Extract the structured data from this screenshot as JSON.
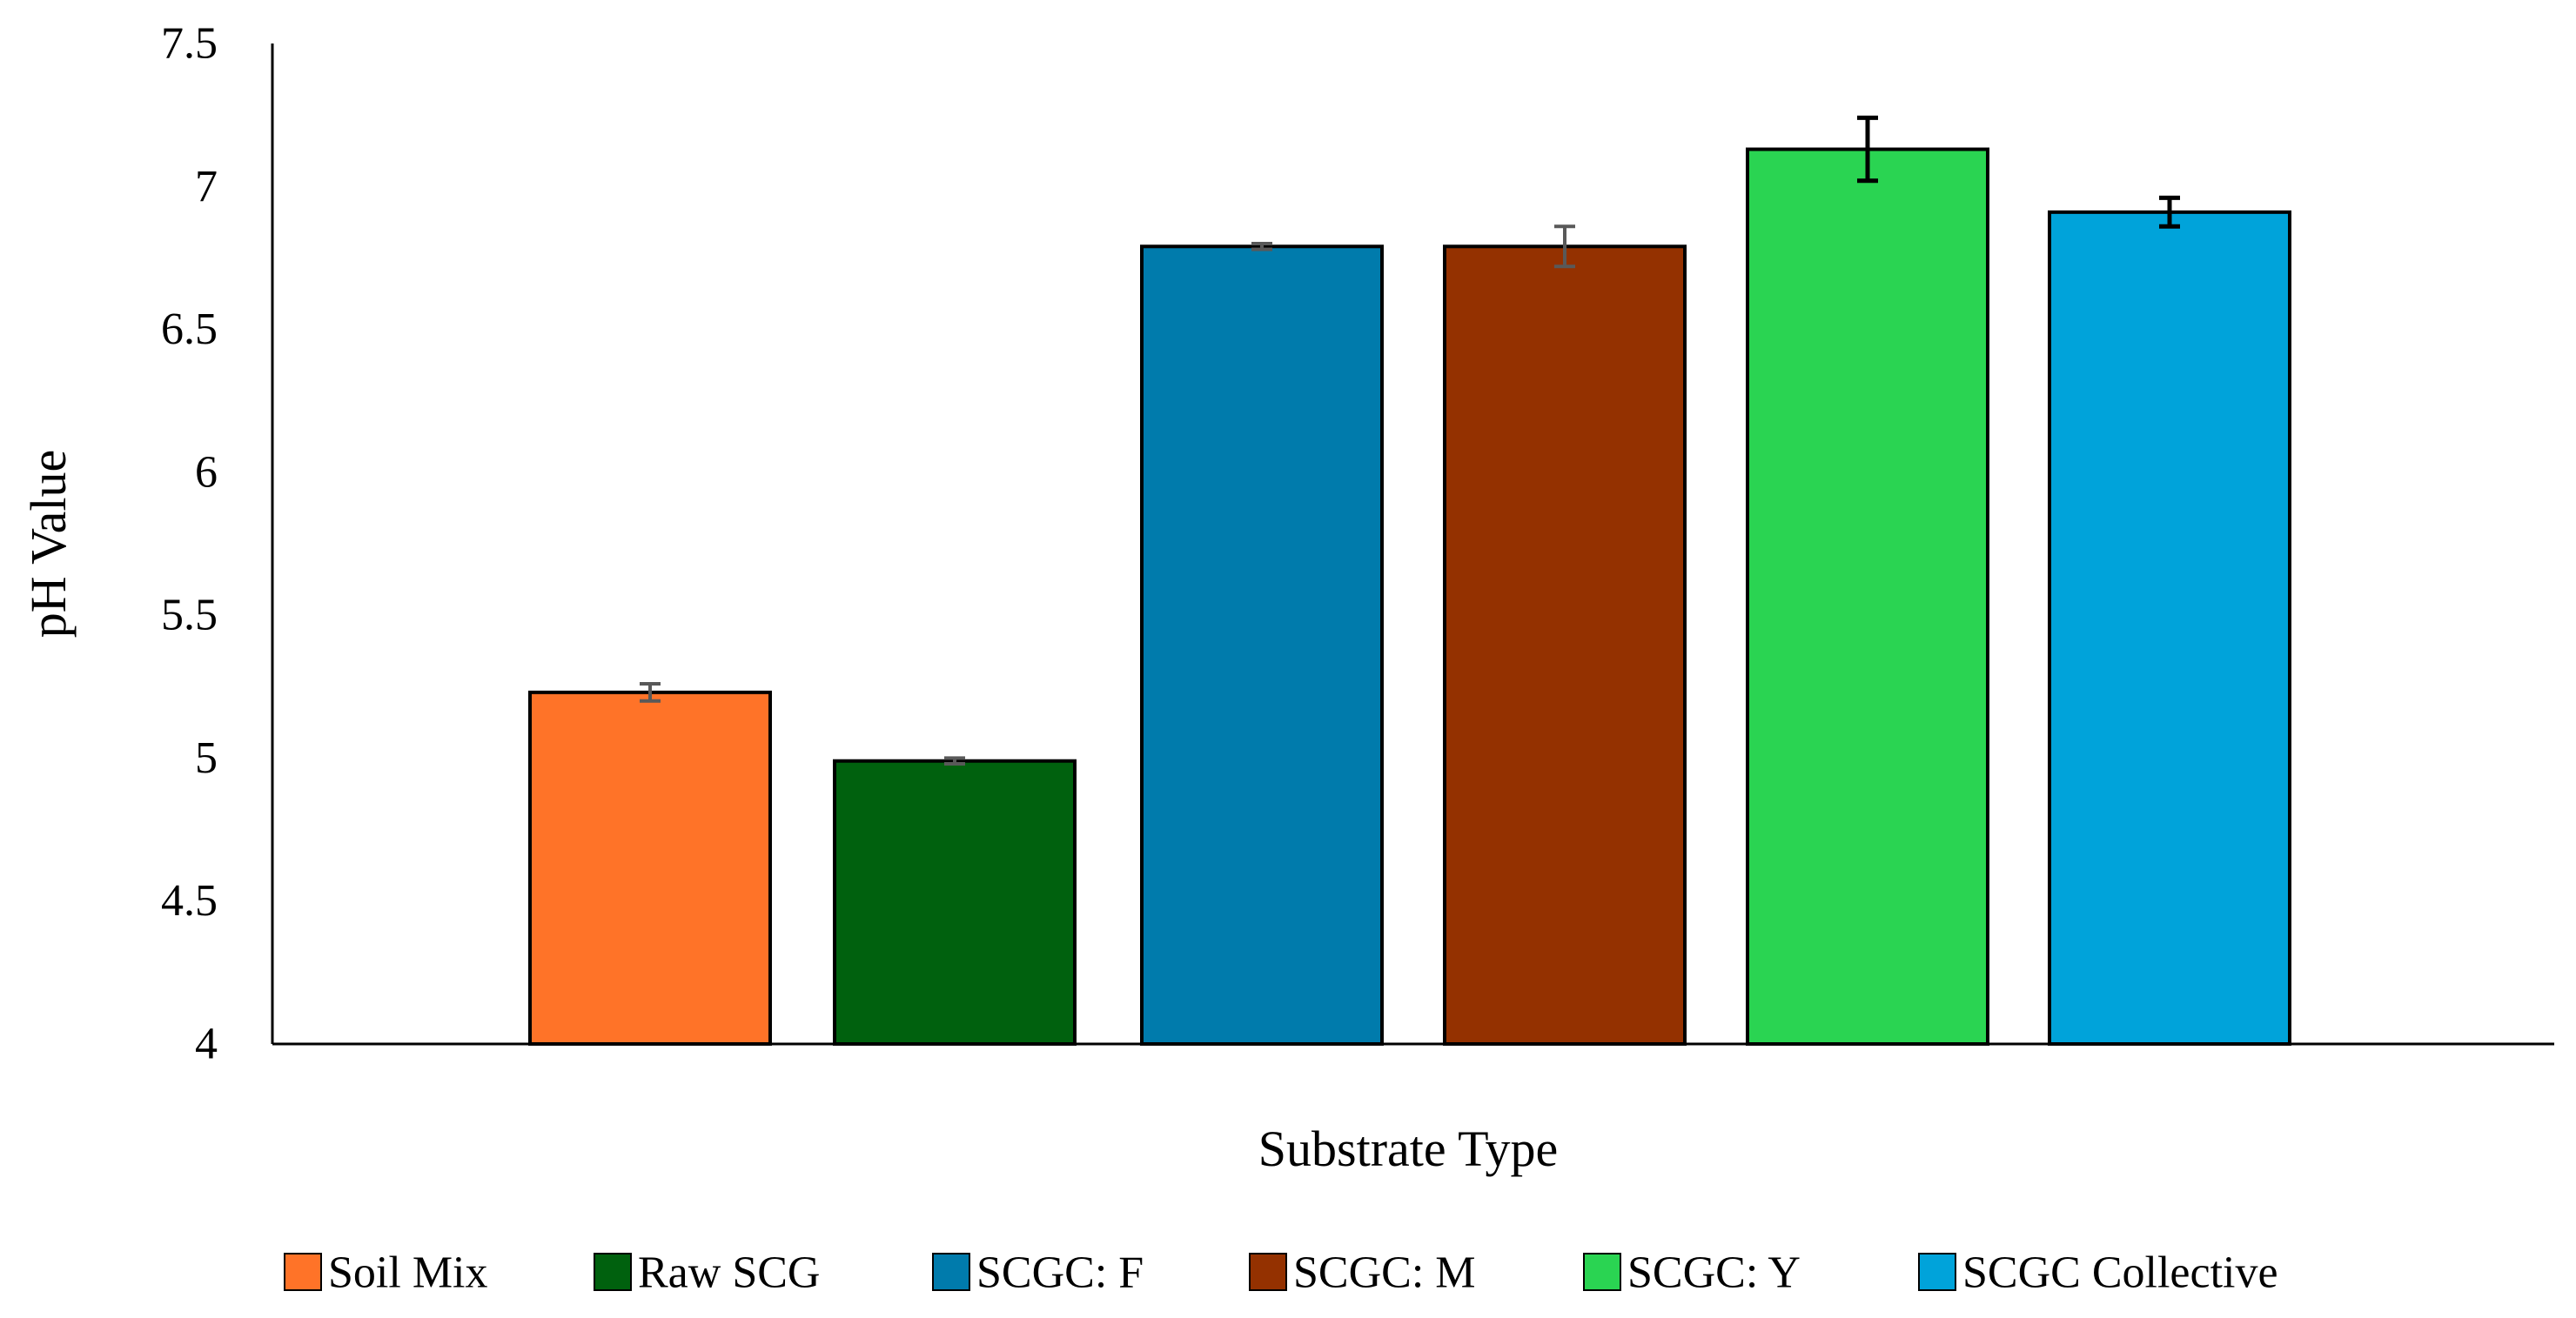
{
  "chart_data": {
    "type": "bar",
    "title": "",
    "xlabel": "Substrate Type",
    "ylabel": "pH Value",
    "ylim": [
      4,
      7.5
    ],
    "yticks": [
      "4",
      "4.5",
      "5",
      "5.5",
      "6",
      "6.5",
      "7",
      "7.5"
    ],
    "grid": false,
    "legend_position": "bottom",
    "categories": [
      "Soil Mix",
      "Raw SCG",
      "SCGC: F",
      "SCGC: M",
      "SCGC: Y",
      "SCGC Collective"
    ],
    "values": [
      5.23,
      4.99,
      6.79,
      6.79,
      7.13,
      6.91
    ],
    "errors": [
      0.03,
      0.01,
      0.01,
      0.07,
      0.11,
      0.05
    ],
    "colors": [
      "#FF7328",
      "#00610E",
      "#007BAC",
      "#943100",
      "#2AD452",
      "#00A3DA"
    ],
    "error_bar_colors": [
      "#595959",
      "#595959",
      "#595959",
      "#595959",
      "#000000",
      "#000000"
    ]
  }
}
